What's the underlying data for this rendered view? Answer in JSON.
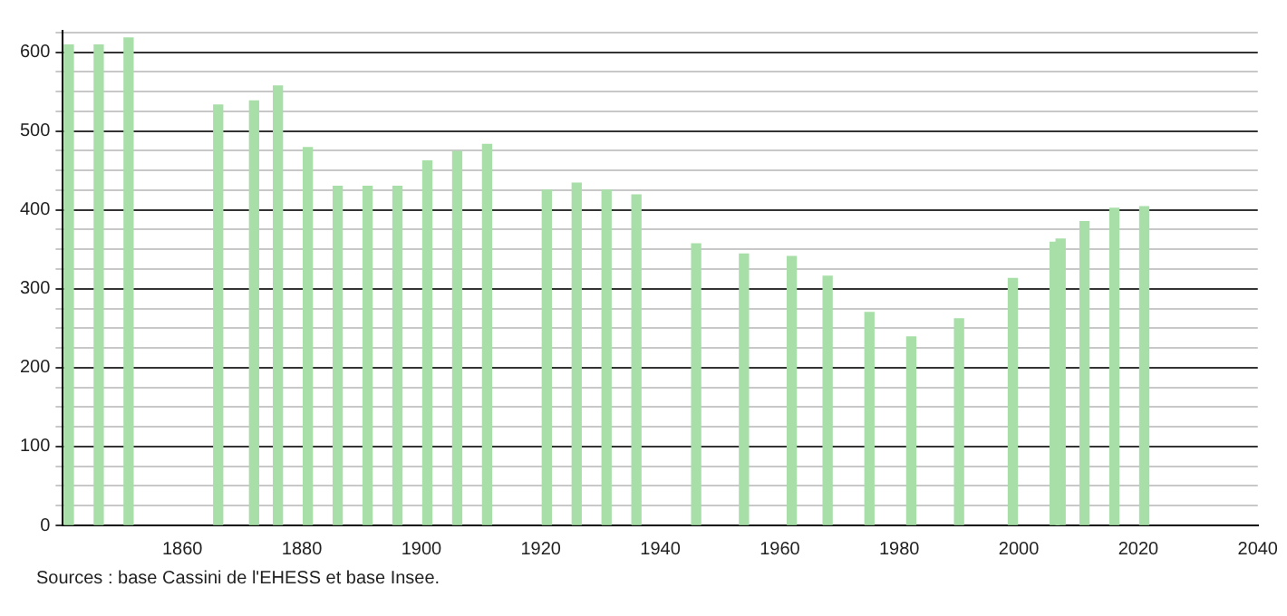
{
  "chart_data": {
    "type": "bar",
    "color": "#a8dfa8",
    "x": [
      1841,
      1846,
      1851,
      1866,
      1872,
      1876,
      1881,
      1886,
      1891,
      1896,
      1901,
      1906,
      1911,
      1921,
      1926,
      1931,
      1936,
      1946,
      1954,
      1962,
      1968,
      1975,
      1982,
      1990,
      1999,
      2006,
      2007,
      2011,
      2016,
      2021
    ],
    "values": [
      609,
      609,
      618,
      533,
      538,
      557,
      479,
      430,
      430,
      430,
      462,
      474,
      483,
      425,
      434,
      425,
      419,
      357,
      344,
      341,
      316,
      270,
      239,
      262,
      313,
      359,
      363,
      385,
      402,
      404
    ],
    "xlim": [
      1840,
      2040
    ],
    "xticks": [
      1860,
      1880,
      1900,
      1920,
      1940,
      1960,
      1980,
      2000,
      2020,
      2040
    ],
    "ylim": [
      0,
      627
    ],
    "yticks": [
      0,
      {
        "value": 25,
        "label": null
      },
      {
        "value": 50,
        "label": null
      },
      {
        "value": 75,
        "label": null
      },
      100,
      {
        "value": 125,
        "label": null
      },
      {
        "value": 150,
        "label": null
      },
      {
        "value": 175,
        "label": null
      },
      200,
      {
        "value": 225,
        "label": null
      },
      {
        "value": 250,
        "label": null
      },
      {
        "value": 275,
        "label": null
      },
      300,
      {
        "value": 325,
        "label": null
      },
      {
        "value": 350,
        "label": null
      },
      {
        "value": 375,
        "label": null
      },
      400,
      {
        "value": 425,
        "label": null
      },
      {
        "value": 450,
        "label": null
      },
      {
        "value": 475,
        "label": null
      },
      500,
      {
        "value": 525,
        "label": null
      },
      {
        "value": 550,
        "label": null
      },
      {
        "value": 575,
        "label": null
      },
      600,
      {
        "value": 625,
        "label": null
      }
    ],
    "grid": "y",
    "annotations": [
      "Sources : base Cassini de l'EHESS et base Insee."
    ]
  }
}
